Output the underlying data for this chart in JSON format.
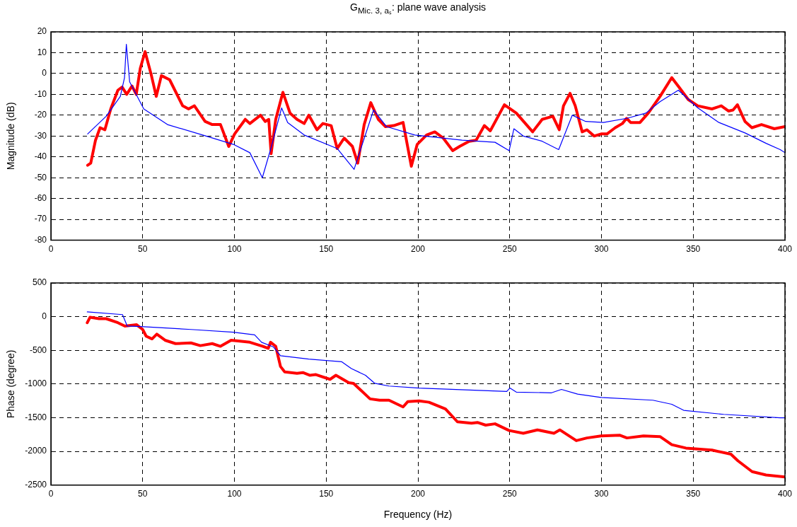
{
  "chart_data": [
    {
      "type": "line",
      "title": "G$_{Mic. 3, aₛ}$: plane wave analysis",
      "ylabel": "Magnitude (dB)",
      "xlim": [
        0,
        400
      ],
      "xticks": [
        0,
        50,
        100,
        150,
        200,
        250,
        300,
        350,
        400
      ],
      "ylim": [
        -80,
        20
      ],
      "yticks": [
        -80,
        -70,
        -60,
        -50,
        -40,
        -30,
        -20,
        -10,
        0,
        10,
        20
      ],
      "grid": true,
      "series": [
        {
          "color": "#ff0000",
          "x": [
            20,
            21.7,
            24.3,
            26.8,
            29.4,
            32.6,
            36.5,
            38.8,
            41.3,
            44.2,
            46.5,
            48.7,
            51.3,
            54.5,
            57.4,
            60.2,
            64.7,
            71.8,
            75,
            78.2,
            84,
            87.9,
            92.4,
            96.9,
            100.1,
            105.9,
            108.4,
            114.2,
            116.8,
            118.7,
            120,
            122.5,
            126.4,
            130.3,
            134.1,
            138,
            140.5,
            145,
            148.2,
            152.7,
            156,
            159.8,
            164.3,
            167.2,
            170.7,
            174.3,
            178.4,
            182.3,
            186.8,
            191.9,
            196.4,
            199.6,
            204.7,
            209.2,
            213.8,
            218.9,
            222.7,
            227.9,
            231.7,
            236.2,
            239.4,
            247.1,
            253.6,
            262.5,
            267.7,
            273.5,
            277,
            279.3,
            282.9,
            285.7,
            289.5,
            292.1,
            296,
            299.8,
            303,
            307.5,
            311.4,
            313.7,
            315.9,
            321,
            325.5,
            331.9,
            338.3,
            342.2,
            347.3,
            352.5,
            360.2,
            365.3,
            369.2,
            371.7,
            374.1,
            378.2,
            382,
            387.2,
            394.2,
            400
          ],
          "values": [
            -44,
            -43,
            -32,
            -26,
            -27,
            -17,
            -8,
            -6.5,
            -10,
            -6,
            -10,
            2.5,
            10.5,
            0,
            -11,
            -1,
            -3,
            -15.5,
            -17,
            -15.5,
            -23,
            -24.5,
            -24.5,
            -35,
            -29,
            -22,
            -24,
            -20,
            -23,
            -22,
            -38.5,
            -22,
            -9,
            -19,
            -22,
            -24,
            -20,
            -27,
            -24,
            -25,
            -36,
            -31,
            -35,
            -43,
            -24.5,
            -14,
            -22,
            -25.5,
            -25,
            -23.5,
            -44.5,
            -34,
            -29.5,
            -28,
            -31,
            -37,
            -35,
            -32.5,
            -32,
            -25,
            -27.5,
            -15,
            -19,
            -28,
            -22,
            -20.5,
            -27,
            -15.5,
            -9.5,
            -15.5,
            -28,
            -27,
            -30,
            -29,
            -29,
            -26,
            -24,
            -21.5,
            -23.5,
            -23.5,
            -19,
            -11,
            -2,
            -6.5,
            -12.5,
            -15.5,
            -17,
            -15.5,
            -18,
            -17.5,
            -15,
            -23,
            -26,
            -24.5,
            -26.5,
            -25.5
          ]
        },
        {
          "color": "#0000ff",
          "x": [
            20,
            30.1,
            37.8,
            40.1,
            41.1,
            42.9,
            50.6,
            63.5,
            82.7,
            99.4,
            108.4,
            115.2,
            120,
            125.7,
            129,
            138,
            156,
            165.2,
            175.8,
            182.9,
            198.3,
            224,
            242,
            249.7,
            252.3,
            257.4,
            267.7,
            276.7,
            284.1,
            291.4,
            301.1,
            313.9,
            324.2,
            331.9,
            341.9,
            352.5,
            364,
            378.2,
            389.7,
            397.4,
            400
          ],
          "values": [
            -29,
            -20.5,
            -11,
            -2,
            14,
            -4,
            -17,
            -24.5,
            -29.5,
            -34,
            -38,
            -50,
            -35.5,
            -16.5,
            -23.5,
            -29.5,
            -36,
            -46,
            -17.5,
            -25.5,
            -29.5,
            -32,
            -33,
            -37,
            -26.5,
            -30,
            -32.5,
            -36.5,
            -20,
            -23,
            -23.5,
            -21.5,
            -19,
            -13.5,
            -8,
            -16.5,
            -23.5,
            -28.5,
            -33.5,
            -36.5,
            -38
          ]
        }
      ]
    },
    {
      "type": "line",
      "xlabel": "Frequency (Hz)",
      "ylabel": "Phase (degree)",
      "xlim": [
        0,
        400
      ],
      "xticks": [
        0,
        50,
        100,
        150,
        200,
        250,
        300,
        350,
        400
      ],
      "ylim": [
        -2500,
        500
      ],
      "yticks": [
        -2500,
        -2000,
        -1500,
        -1000,
        -500,
        0,
        500
      ],
      "grid": true,
      "series": [
        {
          "color": "#ff0000",
          "x": [
            19.8,
            21.3,
            26.2,
            30.1,
            36.5,
            40.3,
            46.7,
            50,
            51.9,
            55.1,
            57.7,
            62.2,
            67.9,
            76.3,
            81.4,
            87.9,
            92.4,
            98.2,
            102,
            108.4,
            115.5,
            118.4,
            119.7,
            122.5,
            125.1,
            127.4,
            134.1,
            137.3,
            141.2,
            144.4,
            152.1,
            155.3,
            162.3,
            164.9,
            173.9,
            179.1,
            184.2,
            191.9,
            194.5,
            200.6,
            206,
            215,
            221.5,
            229.2,
            232.4,
            236.9,
            242,
            249.7,
            257.4,
            265.1,
            274.1,
            277.3,
            286.3,
            292.1,
            299.8,
            310.1,
            313.9,
            322.9,
            331.9,
            338.3,
            346,
            360.2,
            370.5,
            374.4,
            382.1,
            389.7,
            400
          ],
          "values": [
            -90,
            -10,
            -30,
            -30,
            -90,
            -140,
            -120,
            -190,
            -290,
            -330,
            -260,
            -350,
            -400,
            -390,
            -430,
            -400,
            -440,
            -350,
            -360,
            -380,
            -440,
            -470,
            -380,
            -440,
            -740,
            -820,
            -840,
            -830,
            -870,
            -860,
            -930,
            -870,
            -980,
            -990,
            -1220,
            -1240,
            -1240,
            -1340,
            -1260,
            -1250,
            -1270,
            -1370,
            -1560,
            -1580,
            -1570,
            -1610,
            -1590,
            -1690,
            -1730,
            -1680,
            -1730,
            -1680,
            -1840,
            -1800,
            -1770,
            -1760,
            -1800,
            -1770,
            -1780,
            -1900,
            -1950,
            -1980,
            -2040,
            -2140,
            -2300,
            -2350,
            -2380
          ]
        },
        {
          "color": "#0000ff",
          "x": [
            19.8,
            39,
            41.6,
            50.6,
            76.3,
            99.4,
            111,
            114.8,
            121.3,
            125.1,
            140.5,
            158.5,
            163.7,
            171.4,
            176.5,
            184.2,
            200.6,
            248.4,
            250.1,
            253.6,
            272.8,
            278.2,
            287,
            299.8,
            328,
            338.3,
            344.8,
            366.6,
            397.4,
            400
          ],
          "values": [
            70,
            30,
            -140,
            -150,
            -190,
            -230,
            -270,
            -380,
            -450,
            -580,
            -630,
            -670,
            -770,
            -870,
            -990,
            -1030,
            -1060,
            -1110,
            -1060,
            -1120,
            -1130,
            -1080,
            -1150,
            -1200,
            -1240,
            -1300,
            -1390,
            -1450,
            -1500,
            -1500
          ]
        }
      ]
    }
  ]
}
